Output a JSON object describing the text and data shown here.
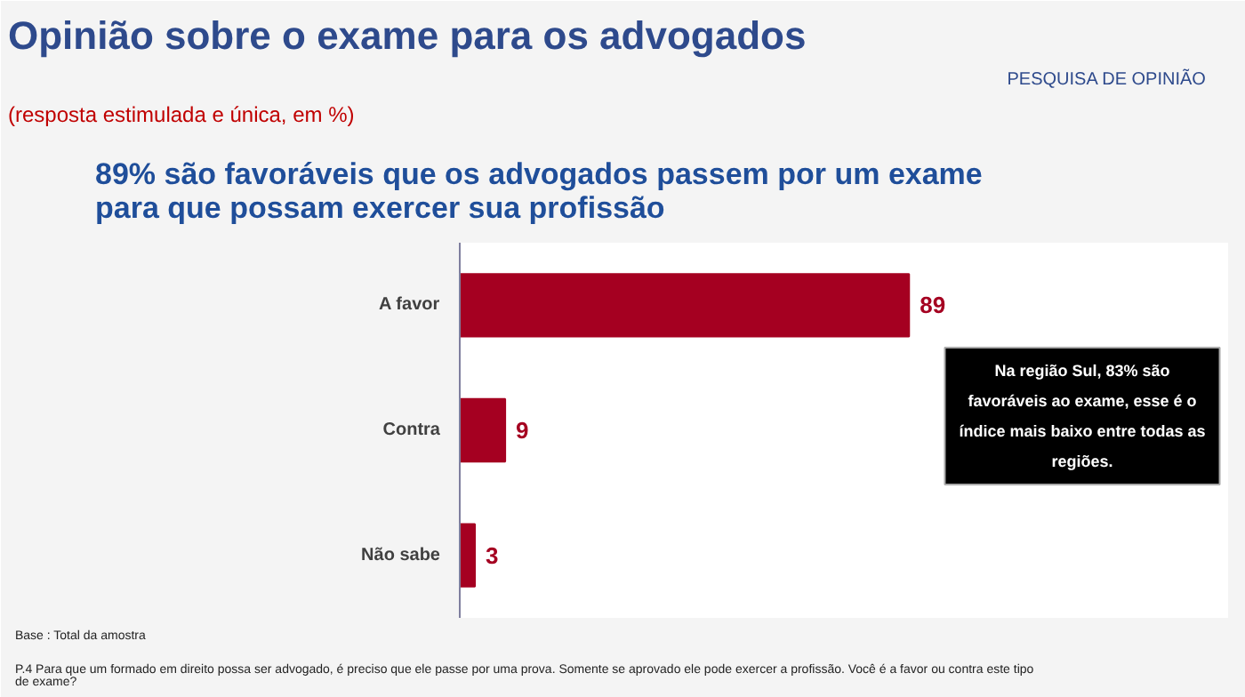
{
  "chart_data": {
    "type": "bar",
    "orientation": "horizontal",
    "title": "Opinião sobre o exame para os advogados",
    "subtitle": "(resposta estimulada e única, em %)",
    "categories": [
      "A favor",
      "Contra",
      "Não sabe"
    ],
    "values": [
      89,
      9,
      3
    ],
    "color": "#a50021",
    "data_labels": true,
    "grid": false,
    "annotations": [
      "PESQUISA DE OPINIÃO",
      "89% são favoráveis que os advogados passem por um exame\npara que possam exercer sua profissão",
      "Na região Sul, 83% são\nfavoráveis ao exame, esse é o\níndice mais baixo entre todas as\nregiões.",
      "Base : Total da amostra",
      "P.4 Para que um formado em direito possa ser advogado, é preciso que ele passe por uma prova. Somente se aprovado ele pode exercer a profissão. Você é a favor ou contra este tipo\nde exame?"
    ]
  }
}
